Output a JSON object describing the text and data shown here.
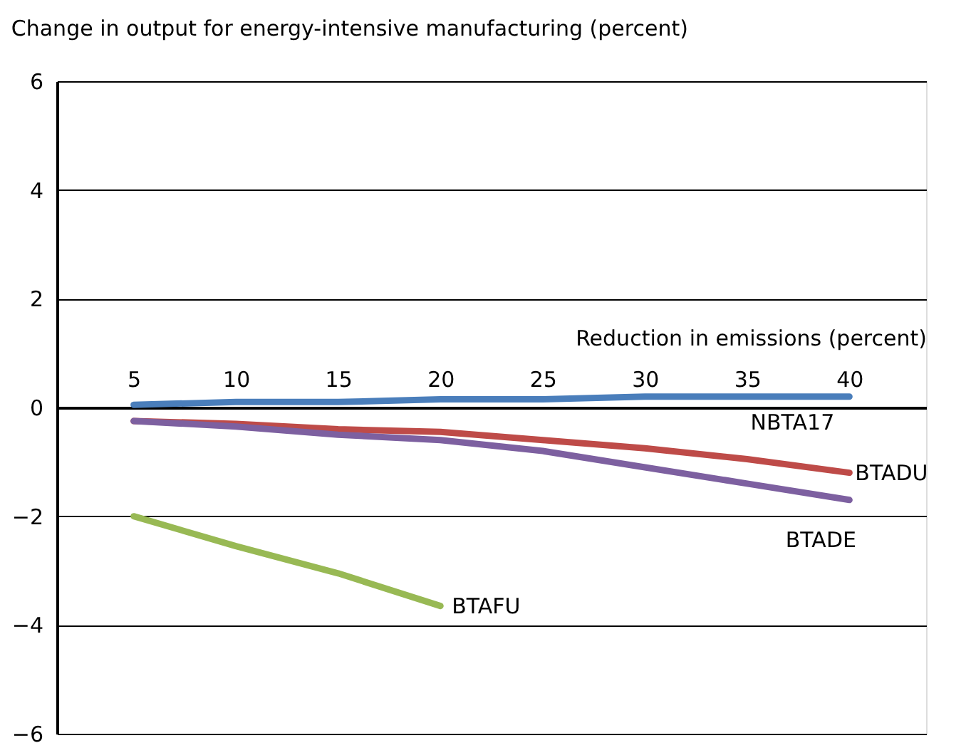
{
  "chart_data": {
    "type": "line",
    "title": "Change in output for energy-intensive manufacturing (percent)",
    "xlabel": "Reduction in emissions (percent)",
    "categories": [
      "5",
      "10",
      "15",
      "20",
      "25",
      "30",
      "35",
      "40"
    ],
    "series": [
      {
        "name": "NBTA17",
        "color": "#4a7ebb",
        "values": [
          0.05,
          0.1,
          0.1,
          0.15,
          0.15,
          0.2,
          0.2,
          0.2
        ]
      },
      {
        "name": "BTADU",
        "color": "#be4b48",
        "values": [
          -0.25,
          -0.3,
          -0.4,
          -0.45,
          -0.6,
          -0.75,
          -0.95,
          -1.2
        ]
      },
      {
        "name": "BTADE",
        "color": "#7d60a0",
        "values": [
          -0.25,
          -0.35,
          -0.5,
          -0.6,
          -0.8,
          -1.1,
          -1.4,
          -1.7
        ]
      },
      {
        "name": "BTAFU",
        "color": "#98b954",
        "values": [
          -2.0,
          -2.55,
          -3.05,
          -3.65,
          null,
          null,
          null,
          null
        ]
      }
    ],
    "ylim": [
      -6,
      6
    ],
    "yticks": [
      -6,
      -4,
      -2,
      0,
      2,
      4,
      6
    ],
    "grid": "y",
    "legend": false,
    "line_style": "solid",
    "marker": "none"
  }
}
